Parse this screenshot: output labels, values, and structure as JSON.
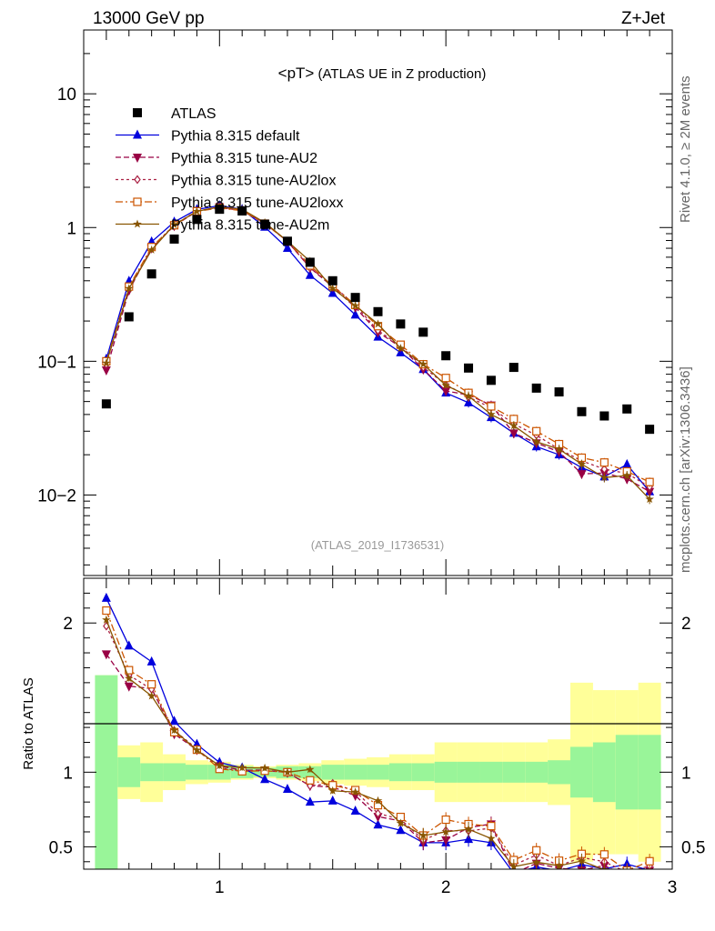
{
  "header": {
    "left": "13000 GeV pp",
    "right": "Z+Jet"
  },
  "side": {
    "top": "Rivet 4.1.0, ≥ 2M events",
    "bottom": "mcplots.cern.ch [arXiv:1306.3436]"
  },
  "main_panel": {
    "title": "<pT>",
    "title_suffix": " (ATLAS UE in Z production)",
    "analysis_id": "(ATLAS_2019_I1736531)",
    "y_tick_labels": [
      "10−2",
      "10−1",
      "1",
      "10"
    ]
  },
  "ratio_panel": {
    "ylabel": "Ratio to ATLAS",
    "y_tick_labels": [
      "0.5",
      "1",
      "2"
    ]
  },
  "colors": {
    "data": "#000000",
    "default": "#0000dd",
    "au2": "#990044",
    "au2lox": "#aa2244",
    "au2loxx": "#cc5500",
    "au2m": "#885500",
    "band_inner": "#99f599",
    "band_outer": "#ffff99"
  },
  "chart_data": {
    "type": "scatter",
    "title": "<pT> (ATLAS UE in Z production)",
    "xlabel": "",
    "ylabel": "",
    "xlim": [
      0.4,
      3.0
    ],
    "ylim": [
      0.0025,
      30
    ],
    "yscale": "log",
    "ratio_ylim": [
      0.35,
      2.3
    ],
    "x_ticks": [
      "1",
      "2",
      "3"
    ],
    "x": [
      0.5,
      0.6,
      0.7,
      0.8,
      0.9,
      1.0,
      1.1,
      1.2,
      1.3,
      1.4,
      1.5,
      1.6,
      1.7,
      1.8,
      1.9,
      2.0,
      2.1,
      2.2,
      2.3,
      2.4,
      2.5,
      2.6,
      2.7,
      2.8,
      2.9
    ],
    "data": {
      "name": "ATLAS",
      "values": [
        0.048,
        0.215,
        0.45,
        0.82,
        1.15,
        1.37,
        1.33,
        1.06,
        0.79,
        0.55,
        0.4,
        0.3,
        0.235,
        0.19,
        0.165,
        0.11,
        0.089,
        0.072,
        0.09,
        0.063,
        0.059,
        0.042,
        0.039,
        0.044,
        0.031
      ],
      "band_inner": [
        0.65,
        0.1,
        0.06,
        0.06,
        0.05,
        0.05,
        0.04,
        0.03,
        0.04,
        0.04,
        0.05,
        0.05,
        0.05,
        0.06,
        0.06,
        0.07,
        0.07,
        0.07,
        0.07,
        0.07,
        0.08,
        0.17,
        0.2,
        0.25,
        0.25
      ],
      "band_outer": [
        0.65,
        0.18,
        0.2,
        0.12,
        0.08,
        0.07,
        0.05,
        0.04,
        0.05,
        0.06,
        0.08,
        0.09,
        0.1,
        0.12,
        0.12,
        0.2,
        0.2,
        0.2,
        0.2,
        0.2,
        0.22,
        0.6,
        0.55,
        0.55,
        0.6
      ]
    },
    "series": [
      {
        "name": "Pythia 8.315 default",
        "color": "#0000dd",
        "dash": "",
        "marker": "triangle",
        "values": [
          0.104,
          0.397,
          0.783,
          1.1,
          1.365,
          1.46,
          1.369,
          1.009,
          0.7,
          0.44,
          0.323,
          0.222,
          0.152,
          0.116,
          0.087,
          0.058,
          0.049,
          0.038,
          0.029,
          0.023,
          0.02,
          0.016,
          0.0137,
          0.0169,
          0.0106
        ]
      },
      {
        "name": "Pythia 8.315 tune-AU2",
        "color": "#990044",
        "dash": "6,3",
        "marker": "tri_down",
        "values": [
          0.086,
          0.339,
          0.702,
          1.03,
          1.323,
          1.427,
          1.347,
          1.075,
          0.788,
          0.5,
          0.36,
          0.253,
          0.165,
          0.128,
          0.087,
          0.06,
          0.056,
          0.047,
          0.029,
          0.0245,
          0.021,
          0.0144,
          0.0146,
          0.0132,
          0.0106
        ]
      },
      {
        "name": "Pythia 8.315 tune-AU2lox",
        "color": "#aa2244",
        "dash": "3,3",
        "marker": "diamond",
        "values": [
          0.095,
          0.355,
          0.7,
          1.05,
          1.33,
          1.41,
          1.34,
          1.07,
          0.79,
          0.5,
          0.37,
          0.262,
          0.17,
          0.13,
          0.09,
          0.067,
          0.054,
          0.045,
          0.034,
          0.028,
          0.022,
          0.018,
          0.0156,
          0.0145,
          0.0115
        ]
      },
      {
        "name": "Pythia 8.315 tune-AU2loxx",
        "color": "#cc5500",
        "dash": "8,3,2,3",
        "marker": "square",
        "values": [
          0.1,
          0.362,
          0.715,
          1.04,
          1.323,
          1.4,
          1.338,
          1.07,
          0.79,
          0.52,
          0.365,
          0.264,
          0.183,
          0.133,
          0.095,
          0.075,
          0.058,
          0.046,
          0.037,
          0.03,
          0.024,
          0.019,
          0.0175,
          0.015,
          0.0125
        ]
      },
      {
        "name": "Pythia 8.315 tune-AU2m",
        "color": "#885500",
        "dash": "",
        "marker": "star",
        "values": [
          0.097,
          0.35,
          0.68,
          1.05,
          1.32,
          1.43,
          1.37,
          1.09,
          0.79,
          0.56,
          0.35,
          0.26,
          0.19,
          0.125,
          0.095,
          0.066,
          0.055,
          0.04,
          0.033,
          0.025,
          0.022,
          0.017,
          0.0135,
          0.014,
          0.0093
        ]
      }
    ]
  }
}
